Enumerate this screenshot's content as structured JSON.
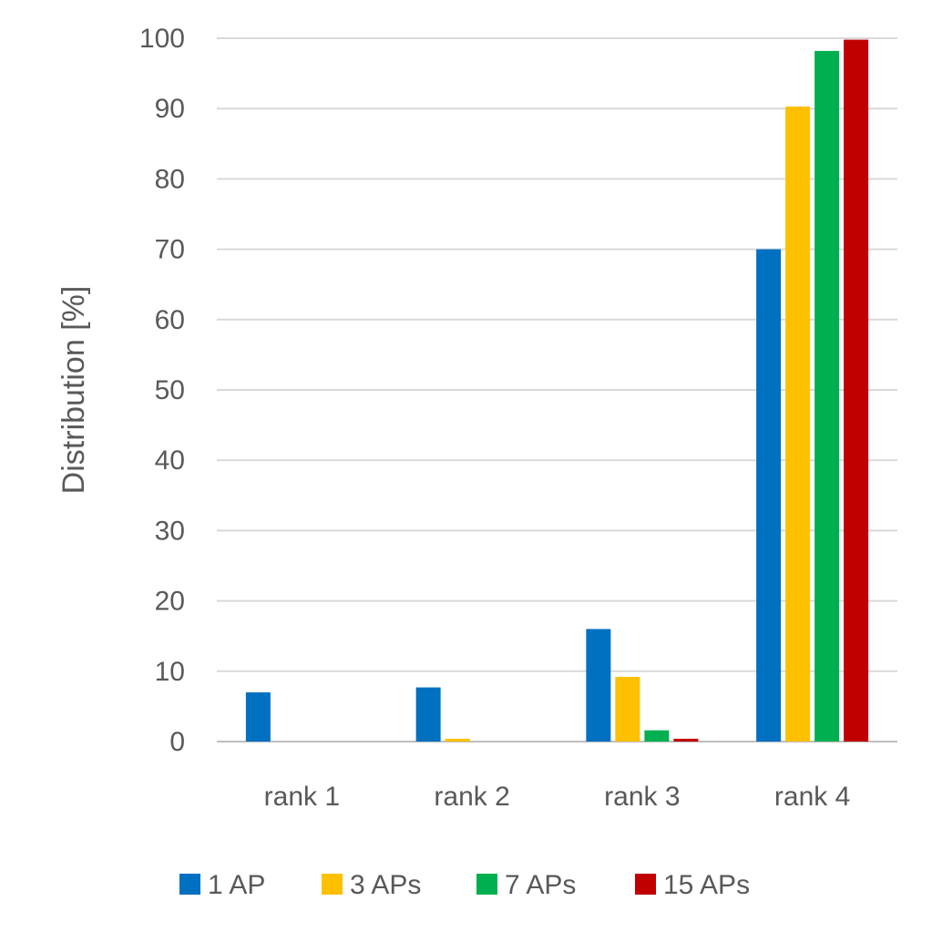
{
  "chart_data": {
    "type": "bar",
    "title": "",
    "xlabel": "",
    "ylabel": "Distribution [%]",
    "categories": [
      "rank 1",
      "rank 2",
      "rank 3",
      "rank 4"
    ],
    "ylim": [
      0,
      100
    ],
    "yticks": [
      0,
      10,
      20,
      30,
      40,
      50,
      60,
      70,
      80,
      90,
      100
    ],
    "grid": true,
    "legend_position": "bottom",
    "series": [
      {
        "name": "1 AP",
        "color": "#0070C0",
        "values": [
          7.0,
          7.7,
          16.0,
          70.0
        ]
      },
      {
        "name": "3 APs",
        "color": "#FFC000",
        "values": [
          0,
          0.4,
          9.2,
          90.3
        ]
      },
      {
        "name": "7 APs",
        "color": "#00B050",
        "values": [
          0,
          0,
          1.6,
          98.2
        ]
      },
      {
        "name": "15 APs",
        "color": "#C00000",
        "values": [
          0,
          0,
          0.4,
          99.8
        ]
      }
    ]
  }
}
